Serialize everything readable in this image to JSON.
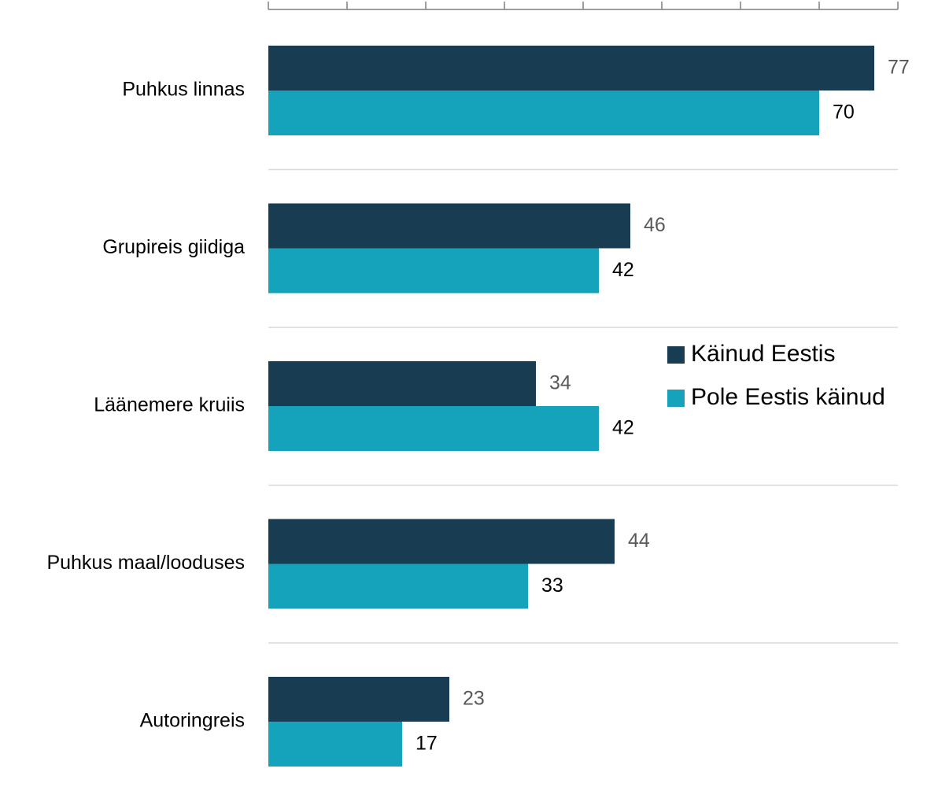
{
  "chart_data": {
    "type": "hbar",
    "categories": [
      "Puhkus linnas",
      "Grupireis giidiga",
      "Läänemere kruiis",
      "Puhkus maal/looduses",
      "Autoringreis"
    ],
    "series": [
      {
        "name": "Käinud Eestis",
        "color": "#183c52",
        "values": [
          77,
          46,
          34,
          44,
          23
        ]
      },
      {
        "name": "Pole Eestis käinud",
        "color": "#15a3bc",
        "values": [
          70,
          42,
          42,
          33,
          17
        ]
      }
    ],
    "xlim": [
      0,
      80
    ],
    "xticks": [
      0,
      10,
      20,
      30,
      40,
      50,
      60,
      70,
      80
    ]
  }
}
